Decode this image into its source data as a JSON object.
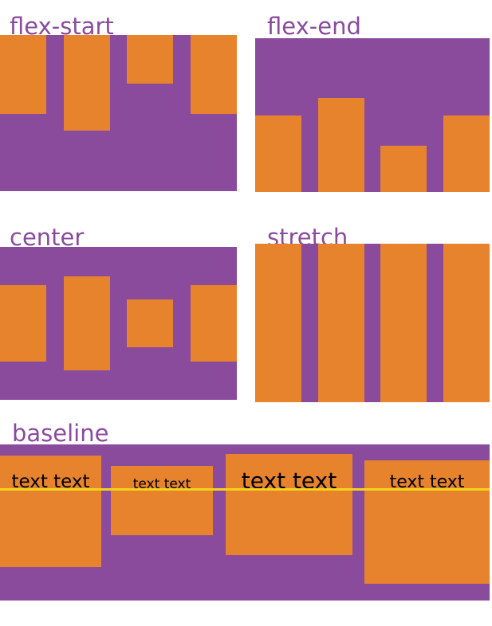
{
  "colors": {
    "container_purple": "#8A4B9D",
    "item_orange": "#E7832C",
    "baseline_yellow": "#F2D21B",
    "label_purple": "#8A4B9D",
    "text_ink": "#000000",
    "page_bg": "#FFFFFF"
  },
  "panels": [
    {
      "label": "flex-start"
    },
    {
      "label": "flex-end"
    },
    {
      "label": "center"
    },
    {
      "label": "stretch"
    },
    {
      "label": "baseline",
      "items": [
        {
          "text": "text text"
        },
        {
          "text": "text text"
        },
        {
          "text": "text text"
        },
        {
          "text": "text text"
        }
      ]
    }
  ]
}
